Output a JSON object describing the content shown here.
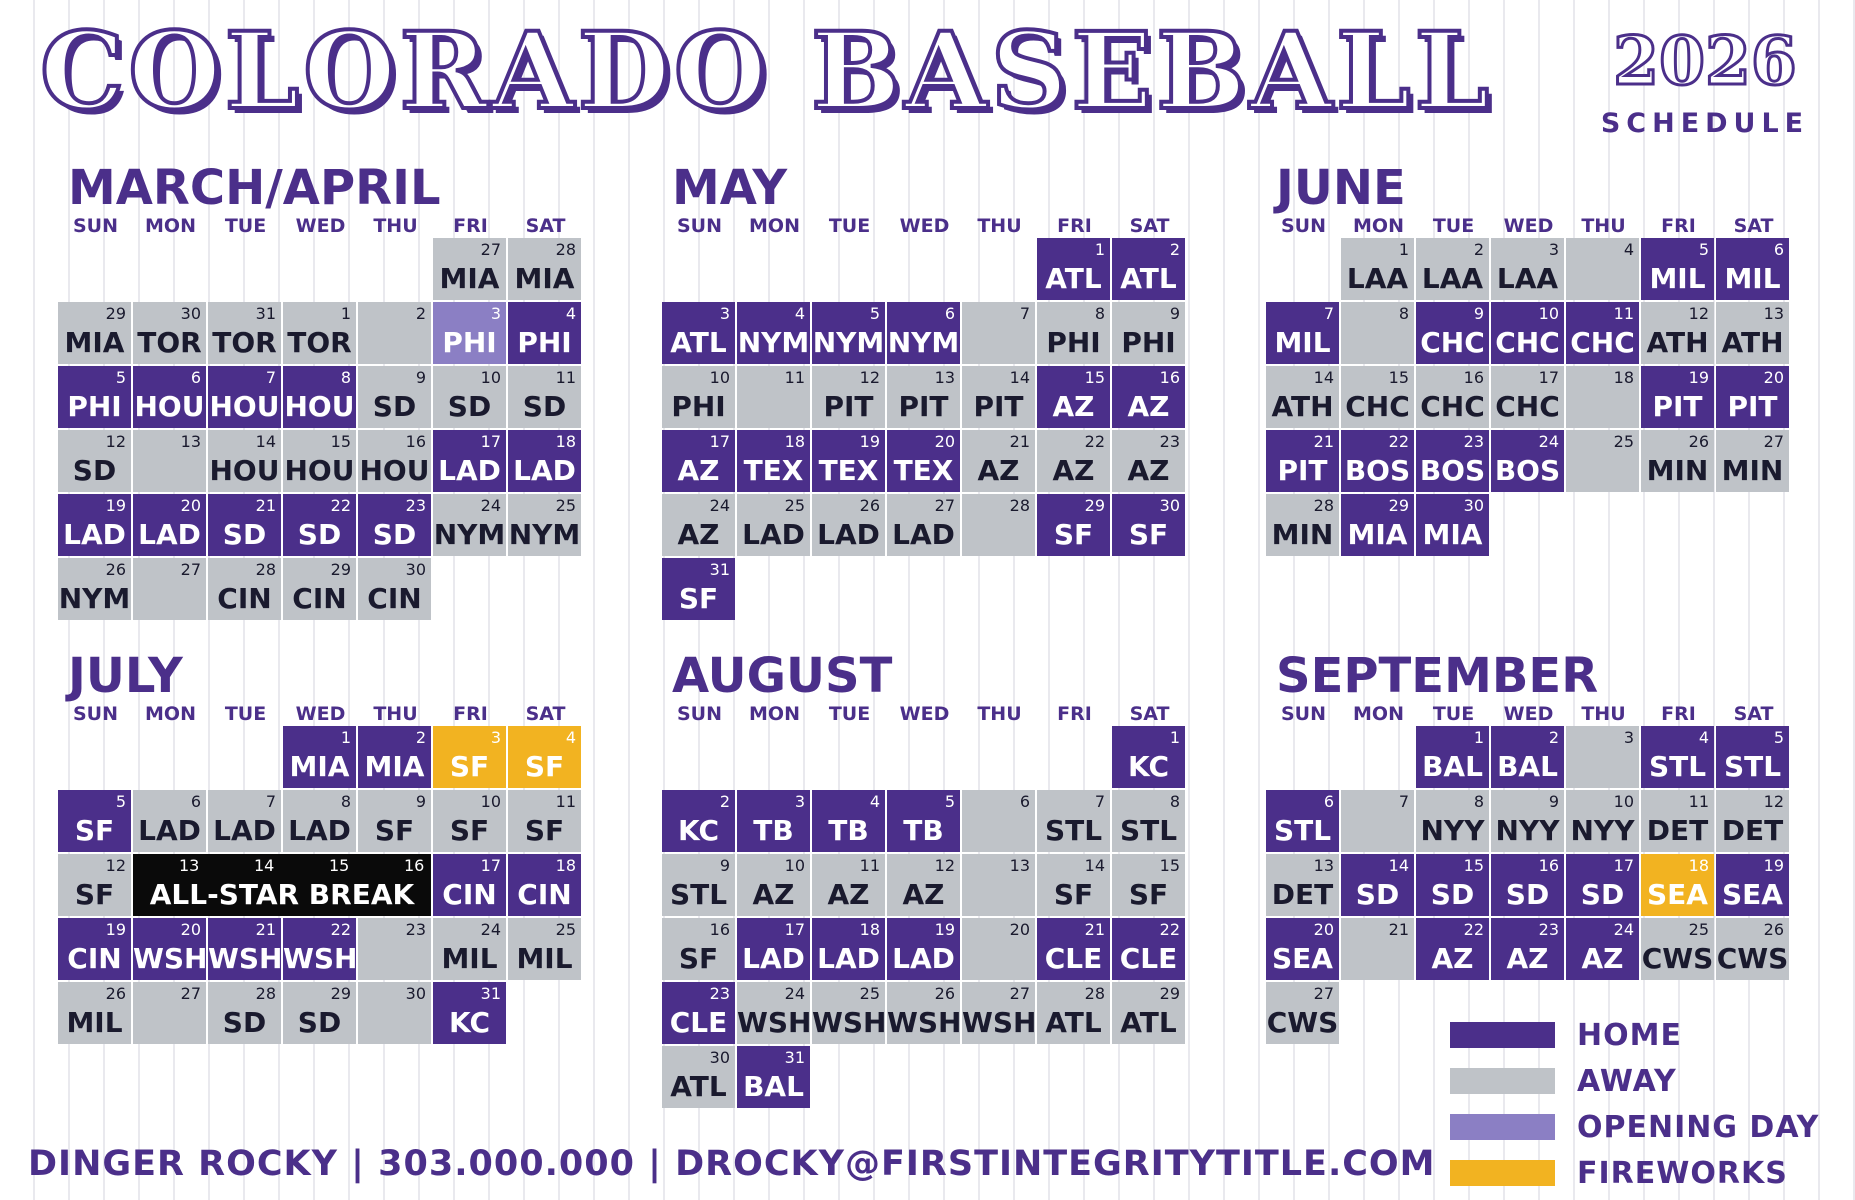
{
  "header": {
    "title": "COLORADO BASEBALL",
    "year": "2026",
    "subtitle": "SCHEDULE"
  },
  "days_of_week": [
    "SUN",
    "MON",
    "TUE",
    "WED",
    "THU",
    "FRI",
    "SAT"
  ],
  "colors": {
    "home": "#4b2f8a",
    "away": "#bfc3c8",
    "opening_day": "#8b7fc4",
    "fireworks": "#f2b321",
    "all_star_break": "#0a0a0a"
  },
  "months": [
    {
      "name": "MARCH/APRIL",
      "games": [
        {
          "day": "27",
          "opponent": "MIA",
          "type": "away"
        },
        {
          "day": "28",
          "opponent": "MIA",
          "type": "away"
        },
        {
          "day": "29",
          "opponent": "MIA",
          "type": "away"
        },
        {
          "day": "30",
          "opponent": "TOR",
          "type": "away"
        },
        {
          "day": "31",
          "opponent": "TOR",
          "type": "away"
        },
        {
          "day": "1",
          "opponent": "TOR",
          "type": "away"
        },
        {
          "day": "2",
          "opponent": "",
          "type": "away"
        },
        {
          "day": "3",
          "opponent": "PHI",
          "type": "opening"
        },
        {
          "day": "4",
          "opponent": "PHI",
          "type": "home"
        },
        {
          "day": "5",
          "opponent": "PHI",
          "type": "home"
        },
        {
          "day": "6",
          "opponent": "HOU",
          "type": "home"
        },
        {
          "day": "7",
          "opponent": "HOU",
          "type": "home"
        },
        {
          "day": "8",
          "opponent": "HOU",
          "type": "home"
        },
        {
          "day": "9",
          "opponent": "SD",
          "type": "away"
        },
        {
          "day": "10",
          "opponent": "SD",
          "type": "away"
        },
        {
          "day": "11",
          "opponent": "SD",
          "type": "away"
        },
        {
          "day": "12",
          "opponent": "SD",
          "type": "away"
        },
        {
          "day": "13",
          "opponent": "",
          "type": "away"
        },
        {
          "day": "14",
          "opponent": "HOU",
          "type": "away"
        },
        {
          "day": "15",
          "opponent": "HOU",
          "type": "away"
        },
        {
          "day": "16",
          "opponent": "HOU",
          "type": "away"
        },
        {
          "day": "17",
          "opponent": "LAD",
          "type": "home"
        },
        {
          "day": "18",
          "opponent": "LAD",
          "type": "home"
        },
        {
          "day": "19",
          "opponent": "LAD",
          "type": "home"
        },
        {
          "day": "20",
          "opponent": "LAD",
          "type": "home"
        },
        {
          "day": "21",
          "opponent": "SD",
          "type": "home"
        },
        {
          "day": "22",
          "opponent": "SD",
          "type": "home"
        },
        {
          "day": "23",
          "opponent": "SD",
          "type": "home"
        },
        {
          "day": "24",
          "opponent": "NYM",
          "type": "away"
        },
        {
          "day": "25",
          "opponent": "NYM",
          "type": "away"
        },
        {
          "day": "26",
          "opponent": "NYM",
          "type": "away"
        },
        {
          "day": "27",
          "opponent": "",
          "type": "away"
        },
        {
          "day": "28",
          "opponent": "CIN",
          "type": "away"
        },
        {
          "day": "29",
          "opponent": "CIN",
          "type": "away"
        },
        {
          "day": "30",
          "opponent": "CIN",
          "type": "away"
        }
      ]
    },
    {
      "name": "MAY",
      "games": [
        {
          "day": "1",
          "opponent": "ATL",
          "type": "home"
        },
        {
          "day": "2",
          "opponent": "ATL",
          "type": "home"
        },
        {
          "day": "3",
          "opponent": "ATL",
          "type": "home"
        },
        {
          "day": "4",
          "opponent": "NYM",
          "type": "home"
        },
        {
          "day": "5",
          "opponent": "NYM",
          "type": "home"
        },
        {
          "day": "6",
          "opponent": "NYM",
          "type": "home"
        },
        {
          "day": "7",
          "opponent": "",
          "type": "away"
        },
        {
          "day": "8",
          "opponent": "PHI",
          "type": "away"
        },
        {
          "day": "9",
          "opponent": "PHI",
          "type": "away"
        },
        {
          "day": "10",
          "opponent": "PHI",
          "type": "away"
        },
        {
          "day": "11",
          "opponent": "",
          "type": "away"
        },
        {
          "day": "12",
          "opponent": "PIT",
          "type": "away"
        },
        {
          "day": "13",
          "opponent": "PIT",
          "type": "away"
        },
        {
          "day": "14",
          "opponent": "PIT",
          "type": "away"
        },
        {
          "day": "15",
          "opponent": "AZ",
          "type": "home"
        },
        {
          "day": "16",
          "opponent": "AZ",
          "type": "home"
        },
        {
          "day": "17",
          "opponent": "AZ",
          "type": "home"
        },
        {
          "day": "18",
          "opponent": "TEX",
          "type": "home"
        },
        {
          "day": "19",
          "opponent": "TEX",
          "type": "home"
        },
        {
          "day": "20",
          "opponent": "TEX",
          "type": "home"
        },
        {
          "day": "21",
          "opponent": "AZ",
          "type": "away"
        },
        {
          "day": "22",
          "opponent": "AZ",
          "type": "away"
        },
        {
          "day": "23",
          "opponent": "AZ",
          "type": "away"
        },
        {
          "day": "24",
          "opponent": "AZ",
          "type": "away"
        },
        {
          "day": "25",
          "opponent": "LAD",
          "type": "away"
        },
        {
          "day": "26",
          "opponent": "LAD",
          "type": "away"
        },
        {
          "day": "27",
          "opponent": "LAD",
          "type": "away"
        },
        {
          "day": "28",
          "opponent": "",
          "type": "away"
        },
        {
          "day": "29",
          "opponent": "SF",
          "type": "home"
        },
        {
          "day": "30",
          "opponent": "SF",
          "type": "home"
        },
        {
          "day": "31",
          "opponent": "SF",
          "type": "home"
        }
      ]
    },
    {
      "name": "JUNE",
      "games": [
        {
          "day": "1",
          "opponent": "LAA",
          "type": "away"
        },
        {
          "day": "2",
          "opponent": "LAA",
          "type": "away"
        },
        {
          "day": "3",
          "opponent": "LAA",
          "type": "away"
        },
        {
          "day": "4",
          "opponent": "",
          "type": "away"
        },
        {
          "day": "5",
          "opponent": "MIL",
          "type": "home"
        },
        {
          "day": "6",
          "opponent": "MIL",
          "type": "home"
        },
        {
          "day": "7",
          "opponent": "MIL",
          "type": "home"
        },
        {
          "day": "8",
          "opponent": "",
          "type": "away"
        },
        {
          "day": "9",
          "opponent": "CHC",
          "type": "home"
        },
        {
          "day": "10",
          "opponent": "CHC",
          "type": "home"
        },
        {
          "day": "11",
          "opponent": "CHC",
          "type": "home"
        },
        {
          "day": "12",
          "opponent": "ATH",
          "type": "away"
        },
        {
          "day": "13",
          "opponent": "ATH",
          "type": "away"
        },
        {
          "day": "14",
          "opponent": "ATH",
          "type": "away"
        },
        {
          "day": "15",
          "opponent": "CHC",
          "type": "away"
        },
        {
          "day": "16",
          "opponent": "CHC",
          "type": "away"
        },
        {
          "day": "17",
          "opponent": "CHC",
          "type": "away"
        },
        {
          "day": "18",
          "opponent": "",
          "type": "away"
        },
        {
          "day": "19",
          "opponent": "PIT",
          "type": "home"
        },
        {
          "day": "20",
          "opponent": "PIT",
          "type": "home"
        },
        {
          "day": "21",
          "opponent": "PIT",
          "type": "home"
        },
        {
          "day": "22",
          "opponent": "BOS",
          "type": "home"
        },
        {
          "day": "23",
          "opponent": "BOS",
          "type": "home"
        },
        {
          "day": "24",
          "opponent": "BOS",
          "type": "home"
        },
        {
          "day": "25",
          "opponent": "",
          "type": "away"
        },
        {
          "day": "26",
          "opponent": "MIN",
          "type": "away"
        },
        {
          "day": "27",
          "opponent": "MIN",
          "type": "away"
        },
        {
          "day": "28",
          "opponent": "MIN",
          "type": "away"
        },
        {
          "day": "29",
          "opponent": "MIA",
          "type": "home"
        },
        {
          "day": "30",
          "opponent": "MIA",
          "type": "home"
        }
      ]
    },
    {
      "name": "JULY",
      "games": [
        {
          "day": "1",
          "opponent": "MIA",
          "type": "home"
        },
        {
          "day": "2",
          "opponent": "MIA",
          "type": "home"
        },
        {
          "day": "3",
          "opponent": "SF",
          "type": "fireworks"
        },
        {
          "day": "4",
          "opponent": "SF",
          "type": "fireworks"
        },
        {
          "day": "5",
          "opponent": "SF",
          "type": "home"
        },
        {
          "day": "6",
          "opponent": "LAD",
          "type": "away"
        },
        {
          "day": "7",
          "opponent": "LAD",
          "type": "away"
        },
        {
          "day": "8",
          "opponent": "LAD",
          "type": "away"
        },
        {
          "day": "9",
          "opponent": "SF",
          "type": "away"
        },
        {
          "day": "10",
          "opponent": "SF",
          "type": "away"
        },
        {
          "day": "11",
          "opponent": "SF",
          "type": "away"
        },
        {
          "day": "12",
          "opponent": "SF",
          "type": "away"
        },
        {
          "day": "17",
          "opponent": "CIN",
          "type": "home"
        },
        {
          "day": "18",
          "opponent": "CIN",
          "type": "home"
        },
        {
          "day": "19",
          "opponent": "CIN",
          "type": "home"
        },
        {
          "day": "20",
          "opponent": "WSH",
          "type": "home"
        },
        {
          "day": "21",
          "opponent": "WSH",
          "type": "home"
        },
        {
          "day": "22",
          "opponent": "WSH",
          "type": "home"
        },
        {
          "day": "23",
          "opponent": "",
          "type": "away"
        },
        {
          "day": "24",
          "opponent": "MIL",
          "type": "away"
        },
        {
          "day": "25",
          "opponent": "MIL",
          "type": "away"
        },
        {
          "day": "26",
          "opponent": "MIL",
          "type": "away"
        },
        {
          "day": "27",
          "opponent": "",
          "type": "away"
        },
        {
          "day": "28",
          "opponent": "SD",
          "type": "away"
        },
        {
          "day": "29",
          "opponent": "SD",
          "type": "away"
        },
        {
          "day": "30",
          "opponent": "",
          "type": "away"
        },
        {
          "day": "31",
          "opponent": "KC",
          "type": "home"
        }
      ],
      "all_star_break": {
        "label": "ALL-STAR BREAK",
        "days": [
          "13",
          "14",
          "15",
          "16"
        ]
      }
    },
    {
      "name": "AUGUST",
      "games": [
        {
          "day": "1",
          "opponent": "KC",
          "type": "home"
        },
        {
          "day": "2",
          "opponent": "KC",
          "type": "home"
        },
        {
          "day": "3",
          "opponent": "TB",
          "type": "home"
        },
        {
          "day": "4",
          "opponent": "TB",
          "type": "home"
        },
        {
          "day": "5",
          "opponent": "TB",
          "type": "home"
        },
        {
          "day": "6",
          "opponent": "",
          "type": "away"
        },
        {
          "day": "7",
          "opponent": "STL",
          "type": "away"
        },
        {
          "day": "8",
          "opponent": "STL",
          "type": "away"
        },
        {
          "day": "9",
          "opponent": "STL",
          "type": "away"
        },
        {
          "day": "10",
          "opponent": "AZ",
          "type": "away"
        },
        {
          "day": "11",
          "opponent": "AZ",
          "type": "away"
        },
        {
          "day": "12",
          "opponent": "AZ",
          "type": "away"
        },
        {
          "day": "13",
          "opponent": "",
          "type": "away"
        },
        {
          "day": "14",
          "opponent": "SF",
          "type": "away"
        },
        {
          "day": "15",
          "opponent": "SF",
          "type": "away"
        },
        {
          "day": "16",
          "opponent": "SF",
          "type": "away"
        },
        {
          "day": "17",
          "opponent": "LAD",
          "type": "home"
        },
        {
          "day": "18",
          "opponent": "LAD",
          "type": "home"
        },
        {
          "day": "19",
          "opponent": "LAD",
          "type": "home"
        },
        {
          "day": "20",
          "opponent": "",
          "type": "away"
        },
        {
          "day": "21",
          "opponent": "CLE",
          "type": "home"
        },
        {
          "day": "22",
          "opponent": "CLE",
          "type": "home"
        },
        {
          "day": "23",
          "opponent": "CLE",
          "type": "home"
        },
        {
          "day": "24",
          "opponent": "WSH",
          "type": "away"
        },
        {
          "day": "25",
          "opponent": "WSH",
          "type": "away"
        },
        {
          "day": "26",
          "opponent": "WSH",
          "type": "away"
        },
        {
          "day": "27",
          "opponent": "WSH",
          "type": "away"
        },
        {
          "day": "28",
          "opponent": "ATL",
          "type": "away"
        },
        {
          "day": "29",
          "opponent": "ATL",
          "type": "away"
        },
        {
          "day": "30",
          "opponent": "ATL",
          "type": "away"
        },
        {
          "day": "31",
          "opponent": "BAL",
          "type": "home"
        }
      ]
    },
    {
      "name": "SEPTEMBER",
      "games": [
        {
          "day": "1",
          "opponent": "BAL",
          "type": "home"
        },
        {
          "day": "2",
          "opponent": "BAL",
          "type": "home"
        },
        {
          "day": "3",
          "opponent": "",
          "type": "away"
        },
        {
          "day": "4",
          "opponent": "STL",
          "type": "home"
        },
        {
          "day": "5",
          "opponent": "STL",
          "type": "home"
        },
        {
          "day": "6",
          "opponent": "STL",
          "type": "home"
        },
        {
          "day": "7",
          "opponent": "",
          "type": "away"
        },
        {
          "day": "8",
          "opponent": "NYY",
          "type": "away"
        },
        {
          "day": "9",
          "opponent": "NYY",
          "type": "away"
        },
        {
          "day": "10",
          "opponent": "NYY",
          "type": "away"
        },
        {
          "day": "11",
          "opponent": "DET",
          "type": "away"
        },
        {
          "day": "12",
          "opponent": "DET",
          "type": "away"
        },
        {
          "day": "13",
          "opponent": "DET",
          "type": "away"
        },
        {
          "day": "14",
          "opponent": "SD",
          "type": "home"
        },
        {
          "day": "15",
          "opponent": "SD",
          "type": "home"
        },
        {
          "day": "16",
          "opponent": "SD",
          "type": "home"
        },
        {
          "day": "17",
          "opponent": "SD",
          "type": "home"
        },
        {
          "day": "18",
          "opponent": "SEA",
          "type": "fireworks"
        },
        {
          "day": "19",
          "opponent": "SEA",
          "type": "home"
        },
        {
          "day": "20",
          "opponent": "SEA",
          "type": "home"
        },
        {
          "day": "21",
          "opponent": "",
          "type": "away"
        },
        {
          "day": "22",
          "opponent": "AZ",
          "type": "home"
        },
        {
          "day": "23",
          "opponent": "AZ",
          "type": "home"
        },
        {
          "day": "24",
          "opponent": "AZ",
          "type": "home"
        },
        {
          "day": "25",
          "opponent": "CWS",
          "type": "away"
        },
        {
          "day": "26",
          "opponent": "CWS",
          "type": "away"
        },
        {
          "day": "27",
          "opponent": "CWS",
          "type": "away"
        }
      ]
    }
  ],
  "legend": [
    {
      "label": "HOME",
      "color": "#4b2f8a"
    },
    {
      "label": "AWAY",
      "color": "#bfc3c8"
    },
    {
      "label": "OPENING DAY",
      "color": "#8b7fc4"
    },
    {
      "label": "FIREWORKS",
      "color": "#f2b321"
    }
  ],
  "footer": {
    "contact": "DINGER ROCKY | 303.000.000 | DROCKY@FIRSTINTEGRITYTITLE.COM"
  }
}
